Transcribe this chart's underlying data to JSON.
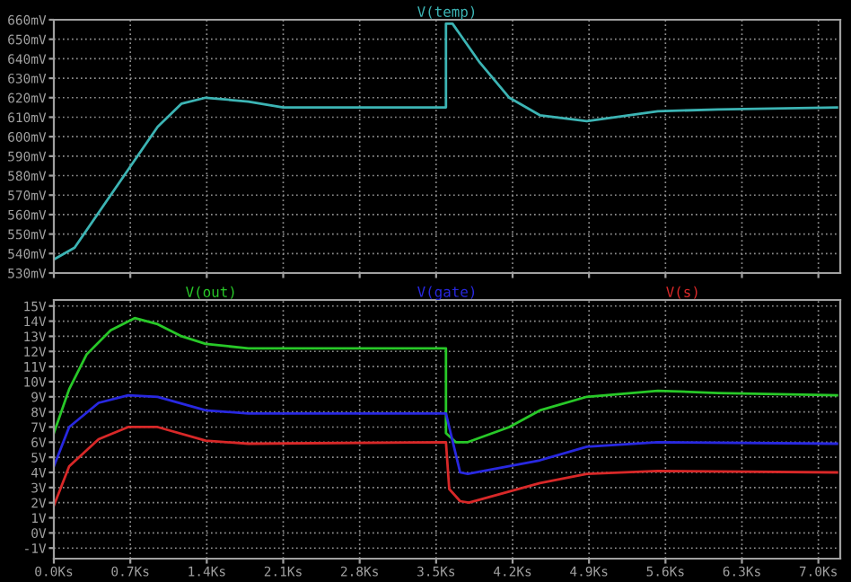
{
  "chart_data": [
    {
      "type": "line",
      "legend": "top",
      "grid": true,
      "tick_labels": "y",
      "xlim": [
        0,
        7.2
      ],
      "xticks": [
        {
          "value": 0,
          "label": null
        },
        {
          "value": 0.7,
          "label": null
        },
        {
          "value": 1.4,
          "label": null
        },
        {
          "value": 2.1,
          "label": null
        },
        {
          "value": 2.8,
          "label": null
        },
        {
          "value": 3.5,
          "label": null
        },
        {
          "value": 4.2,
          "label": null
        },
        {
          "value": 4.9,
          "label": null
        },
        {
          "value": 5.6,
          "label": null
        },
        {
          "value": 6.3,
          "label": null
        },
        {
          "value": 7.0,
          "label": null
        }
      ],
      "ylim": [
        530,
        660
      ],
      "yticks": [
        {
          "value": 530,
          "label": "530mV"
        },
        {
          "value": 540,
          "label": "540mV"
        },
        {
          "value": 550,
          "label": "550mV"
        },
        {
          "value": 560,
          "label": "560mV"
        },
        {
          "value": 570,
          "label": "570mV"
        },
        {
          "value": 580,
          "label": "580mV"
        },
        {
          "value": 590,
          "label": "590mV"
        },
        {
          "value": 600,
          "label": "600mV"
        },
        {
          "value": 610,
          "label": "610mV"
        },
        {
          "value": 620,
          "label": "620mV"
        },
        {
          "value": 630,
          "label": "630mV"
        },
        {
          "value": 640,
          "label": "640mV"
        },
        {
          "value": 650,
          "label": "650mV"
        },
        {
          "value": 660,
          "label": "660mV"
        }
      ],
      "series": [
        {
          "name": "V(temp)",
          "color": "#3cb4b4",
          "x": [
            0,
            0.19,
            0.41,
            0.68,
            0.95,
            1.17,
            1.39,
            1.78,
            2.1,
            3.0,
            3.59,
            3.59,
            3.65,
            3.9,
            4.17,
            4.45,
            4.88,
            5.53,
            6.08,
            7.17
          ],
          "values": [
            537,
            543,
            561,
            583,
            605,
            617,
            620,
            618,
            615,
            615,
            615,
            658,
            658,
            638,
            620,
            611,
            608,
            613,
            614,
            615
          ]
        }
      ]
    },
    {
      "type": "line",
      "legend": "top",
      "grid": true,
      "xlim": [
        0,
        7.2
      ],
      "xticks": [
        {
          "value": 0,
          "label": "0.0Ks"
        },
        {
          "value": 0.7,
          "label": "0.7Ks"
        },
        {
          "value": 1.4,
          "label": "1.4Ks"
        },
        {
          "value": 2.1,
          "label": "2.1Ks"
        },
        {
          "value": 2.8,
          "label": "2.8Ks"
        },
        {
          "value": 3.5,
          "label": "3.5Ks"
        },
        {
          "value": 4.2,
          "label": "4.2Ks"
        },
        {
          "value": 4.9,
          "label": "4.9Ks"
        },
        {
          "value": 5.6,
          "label": "5.6Ks"
        },
        {
          "value": 6.3,
          "label": "6.3Ks"
        },
        {
          "value": 7.0,
          "label": "7.0Ks"
        }
      ],
      "ylim": [
        -1.7,
        15.4
      ],
      "yticks": [
        {
          "value": -1,
          "label": "-1V"
        },
        {
          "value": 0,
          "label": "0V"
        },
        {
          "value": 1,
          "label": "1V"
        },
        {
          "value": 2,
          "label": "2V"
        },
        {
          "value": 3,
          "label": "3V"
        },
        {
          "value": 4,
          "label": "4V"
        },
        {
          "value": 5,
          "label": "5V"
        },
        {
          "value": 6,
          "label": "6V"
        },
        {
          "value": 7,
          "label": "7V"
        },
        {
          "value": 8,
          "label": "8V"
        },
        {
          "value": 9,
          "label": "9V"
        },
        {
          "value": 10,
          "label": "10V"
        },
        {
          "value": 11,
          "label": "11V"
        },
        {
          "value": 12,
          "label": "12V"
        },
        {
          "value": 13,
          "label": "13V"
        },
        {
          "value": 14,
          "label": "14V"
        },
        {
          "value": 15,
          "label": "15V"
        }
      ],
      "series": [
        {
          "name": "V(out)",
          "color": "#28c828",
          "x": [
            0,
            0.14,
            0.3,
            0.52,
            0.74,
            0.95,
            1.17,
            1.39,
            1.78,
            3.59,
            3.59,
            3.68,
            3.79,
            4.17,
            4.45,
            4.88,
            5.53,
            6.08,
            7.17
          ],
          "values": [
            6.6,
            9.5,
            11.8,
            13.4,
            14.2,
            13.8,
            13.0,
            12.5,
            12.2,
            12.2,
            6.6,
            6.0,
            6.0,
            7.0,
            8.1,
            9.0,
            9.4,
            9.25,
            9.1
          ]
        },
        {
          "name": "V(gate)",
          "color": "#2828e0",
          "x": [
            0,
            0.14,
            0.41,
            0.68,
            0.95,
            1.39,
            1.78,
            3.59,
            3.62,
            3.72,
            3.79,
            4.45,
            4.88,
            5.53,
            7.17
          ],
          "values": [
            4.4,
            7.0,
            8.6,
            9.1,
            9.0,
            8.1,
            7.9,
            7.9,
            7.0,
            4.0,
            3.9,
            4.8,
            5.7,
            6.0,
            5.9
          ]
        },
        {
          "name": "V(s)",
          "color": "#d82828",
          "x": [
            0,
            0.14,
            0.41,
            0.68,
            0.95,
            1.39,
            1.78,
            3.59,
            3.62,
            3.72,
            3.8,
            4.45,
            4.88,
            5.53,
            7.17
          ],
          "values": [
            1.8,
            4.4,
            6.2,
            7.0,
            7.0,
            6.1,
            5.9,
            6.0,
            2.9,
            2.1,
            2.0,
            3.3,
            3.9,
            4.1,
            4.0
          ]
        }
      ]
    }
  ]
}
